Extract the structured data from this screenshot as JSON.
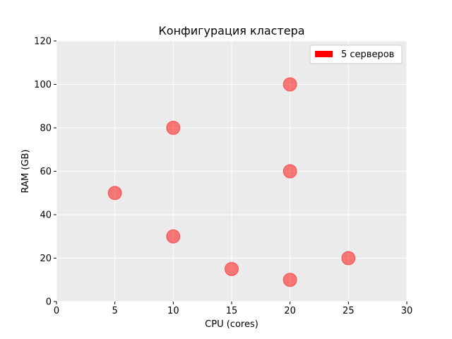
{
  "chart_data": {
    "type": "scatter",
    "title": "Конфигурация кластера",
    "xlabel": "CPU (cores)",
    "ylabel": "RAM (GB)",
    "xlim": [
      0,
      30
    ],
    "ylim": [
      0,
      120
    ],
    "xticks": [
      "0",
      "5",
      "10",
      "15",
      "20",
      "25",
      "30"
    ],
    "yticks": [
      "0",
      "20",
      "40",
      "60",
      "80",
      "100",
      "120"
    ],
    "grid": true,
    "legend_position": "top-right",
    "series": [
      {
        "name": "5 серверов",
        "color": "#ff0000",
        "points": [
          {
            "x": 5,
            "y": 50
          },
          {
            "x": 10,
            "y": 80
          },
          {
            "x": 10,
            "y": 30
          },
          {
            "x": 15,
            "y": 15
          },
          {
            "x": 20,
            "y": 100
          },
          {
            "x": 20,
            "y": 60
          },
          {
            "x": 20,
            "y": 10
          },
          {
            "x": 25,
            "y": 20
          }
        ]
      }
    ]
  }
}
